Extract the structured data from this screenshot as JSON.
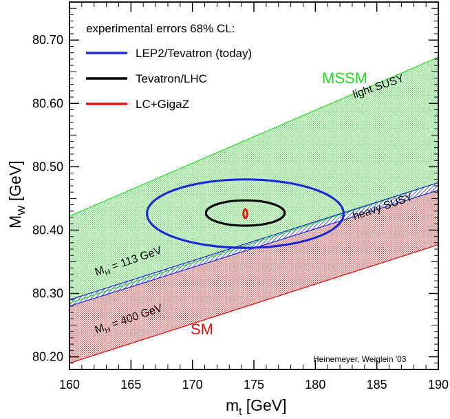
{
  "chart_data": {
    "type": "band-contour",
    "xlabel": "m",
    "xlabel_sub": "t",
    "xlabel_unit": " [GeV]",
    "ylabel": "M",
    "ylabel_sub": "W",
    "ylabel_unit": " [GeV]",
    "xlim": [
      160,
      190
    ],
    "ylim": [
      80.18,
      80.76
    ],
    "xticks": [
      160,
      165,
      170,
      175,
      180,
      185,
      190
    ],
    "yticks": [
      80.2,
      80.3,
      80.4,
      80.5,
      80.6,
      80.7
    ],
    "yticklabels": [
      "80.20",
      "80.30",
      "80.40",
      "80.50",
      "80.60",
      "80.70"
    ],
    "colors": {
      "mssm": "#22dd22",
      "sm": "#dd1111",
      "hatch": "#2233cc",
      "lep2": "#1a28d8",
      "tevlhc": "#000000",
      "lc": "#ee1111"
    },
    "bands": {
      "mssm": {
        "upper": [
          [
            160,
            80.422
          ],
          [
            190,
            80.673
          ]
        ],
        "lower": [
          [
            160,
            80.285
          ],
          [
            190,
            80.475
          ]
        ]
      },
      "hatch": {
        "upper": [
          [
            160,
            80.29
          ],
          [
            190,
            80.475
          ]
        ],
        "lower": [
          [
            160,
            80.28
          ],
          [
            190,
            80.463
          ]
        ]
      },
      "sm": {
        "upper": [
          [
            160,
            80.28
          ],
          [
            190,
            80.463
          ]
        ],
        "lower": [
          [
            160,
            80.19
          ],
          [
            190,
            80.377
          ]
        ]
      }
    },
    "ellipses": [
      {
        "id": "lep2",
        "cx": 174.3,
        "cy": 80.426,
        "rx": 8.0,
        "ry": 0.054
      },
      {
        "id": "tevlhc",
        "cx": 174.3,
        "cy": 80.427,
        "rx": 3.2,
        "ry": 0.02
      },
      {
        "id": "lc",
        "cx": 174.3,
        "cy": 80.426,
        "rx": 0.15,
        "ry": 0.007
      }
    ],
    "legend": {
      "title": "experimental errors 68% CL:",
      "entries": [
        {
          "label": "LEP2/Tevatron (today)",
          "color_key": "lep2"
        },
        {
          "label": "Tevatron/LHC",
          "color_key": "tevlhc"
        },
        {
          "label": "LC+GigaZ",
          "color_key": "lc"
        }
      ]
    },
    "annotations": {
      "mssm": "MSSM",
      "sm": "SM",
      "light_susy": "light SUSY",
      "heavy_susy": "heavy SUSY",
      "mh113": {
        "main": "M",
        "sub": "H",
        "rest": " = 113 GeV"
      },
      "mh400": {
        "main": "M",
        "sub": "H",
        "rest": " = 400 GeV"
      },
      "credit": "Heinemeyer, Weiglein '03"
    }
  }
}
